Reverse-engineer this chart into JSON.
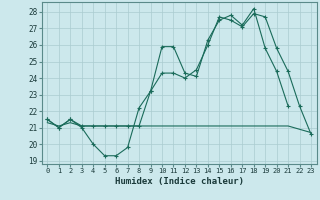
{
  "xlabel": "Humidex (Indice chaleur)",
  "background_color": "#cce8ec",
  "grid_color": "#aaccd0",
  "line_color": "#1a6b5a",
  "xlim": [
    -0.5,
    23.5
  ],
  "ylim": [
    18.8,
    28.6
  ],
  "yticks": [
    19,
    20,
    21,
    22,
    23,
    24,
    25,
    26,
    27,
    28
  ],
  "xticks": [
    0,
    1,
    2,
    3,
    4,
    5,
    6,
    7,
    8,
    9,
    10,
    11,
    12,
    13,
    14,
    15,
    16,
    17,
    18,
    19,
    20,
    21,
    22,
    23
  ],
  "line1_x": [
    0,
    1,
    2,
    3,
    4,
    5,
    6,
    7,
    8,
    9,
    10,
    11,
    12,
    13,
    14,
    15,
    16,
    17,
    18,
    19,
    20,
    21
  ],
  "line1_y": [
    21.5,
    21.0,
    21.5,
    21.0,
    20.0,
    19.3,
    19.3,
    19.8,
    22.2,
    23.2,
    25.9,
    25.9,
    24.3,
    24.1,
    26.3,
    27.5,
    27.8,
    27.2,
    28.2,
    25.8,
    24.4,
    22.3
  ],
  "line2_x": [
    0,
    1,
    2,
    3,
    4,
    5,
    6,
    7,
    8,
    9,
    10,
    11,
    12,
    13,
    14,
    15,
    16,
    17,
    18,
    19,
    20,
    21,
    22,
    23
  ],
  "line2_y": [
    21.5,
    21.0,
    21.5,
    21.1,
    21.1,
    21.1,
    21.1,
    21.1,
    21.1,
    23.2,
    24.3,
    24.3,
    24.0,
    24.5,
    26.0,
    27.7,
    27.5,
    27.1,
    27.9,
    27.7,
    25.8,
    24.4,
    22.3,
    20.6
  ],
  "line3_x": [
    0,
    1,
    2,
    3,
    4,
    5,
    6,
    7,
    8,
    9,
    10,
    11,
    12,
    13,
    14,
    15,
    16,
    17,
    18,
    19,
    20,
    21,
    22,
    23
  ],
  "line3_y": [
    21.3,
    21.1,
    21.3,
    21.1,
    21.1,
    21.1,
    21.1,
    21.1,
    21.1,
    21.1,
    21.1,
    21.1,
    21.1,
    21.1,
    21.1,
    21.1,
    21.1,
    21.1,
    21.1,
    21.1,
    21.1,
    21.1,
    20.9,
    20.7
  ]
}
